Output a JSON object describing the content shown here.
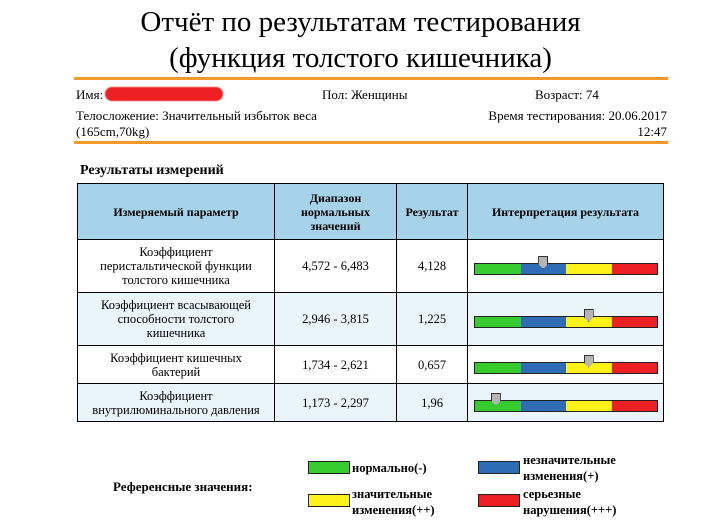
{
  "title": {
    "line1": "Отчёт по результатам тестирования",
    "line2": "(функция толстого кишечника)"
  },
  "patient": {
    "name_label": "Имя:",
    "gender": "Пол: Женщины",
    "age": "Возраст: 74",
    "physique_line1": "Телосложение: Значительный избыток веса",
    "physique_line2": "(165cm,70kg)",
    "test_time_line1": "Время тестирования: 20.06.2017",
    "test_time_line2": "12:47"
  },
  "section_title": "Результаты измерений",
  "table": {
    "headers": {
      "param": "Измеряемый параметр",
      "range": "Диапазон нормальных значений",
      "result": "Результат",
      "interp": "Интерпретация результата"
    },
    "rows": [
      {
        "param": "Коэффициент перистальтической функции толстого кишечника",
        "range": "4,572 - 6,483",
        "result": "4,128",
        "marker_pos": 0.38
      },
      {
        "param": "Коэффициент всасывающей способности толстого кишечника",
        "range": "2,946 - 3,815",
        "result": "1,225",
        "marker_pos": 0.63
      },
      {
        "param": "Коэффициент кишечных бактерий",
        "range": "1,734 - 2,621",
        "result": "0,657",
        "marker_pos": 0.63
      },
      {
        "param": "Коэффициент внутрилюминального давления",
        "range": "1,173 - 2,297",
        "result": "1,96",
        "marker_pos": 0.12
      }
    ]
  },
  "scale_colors": [
    "#36cc2f",
    "#2e6db5",
    "#fff21a",
    "#ee1f22"
  ],
  "legend": {
    "label": "Референсные значения:",
    "items": [
      {
        "text1": "нормально(-)",
        "text2": "",
        "color": "#36cc2f"
      },
      {
        "text1": "незначительные",
        "text2": "изменения(+)",
        "color": "#2e6db5"
      },
      {
        "text1": "значительные",
        "text2": "изменения(++)",
        "color": "#fff21a"
      },
      {
        "text1": "серьезные",
        "text2": "нарушения(+++)",
        "color": "#ee1f22"
      }
    ]
  }
}
